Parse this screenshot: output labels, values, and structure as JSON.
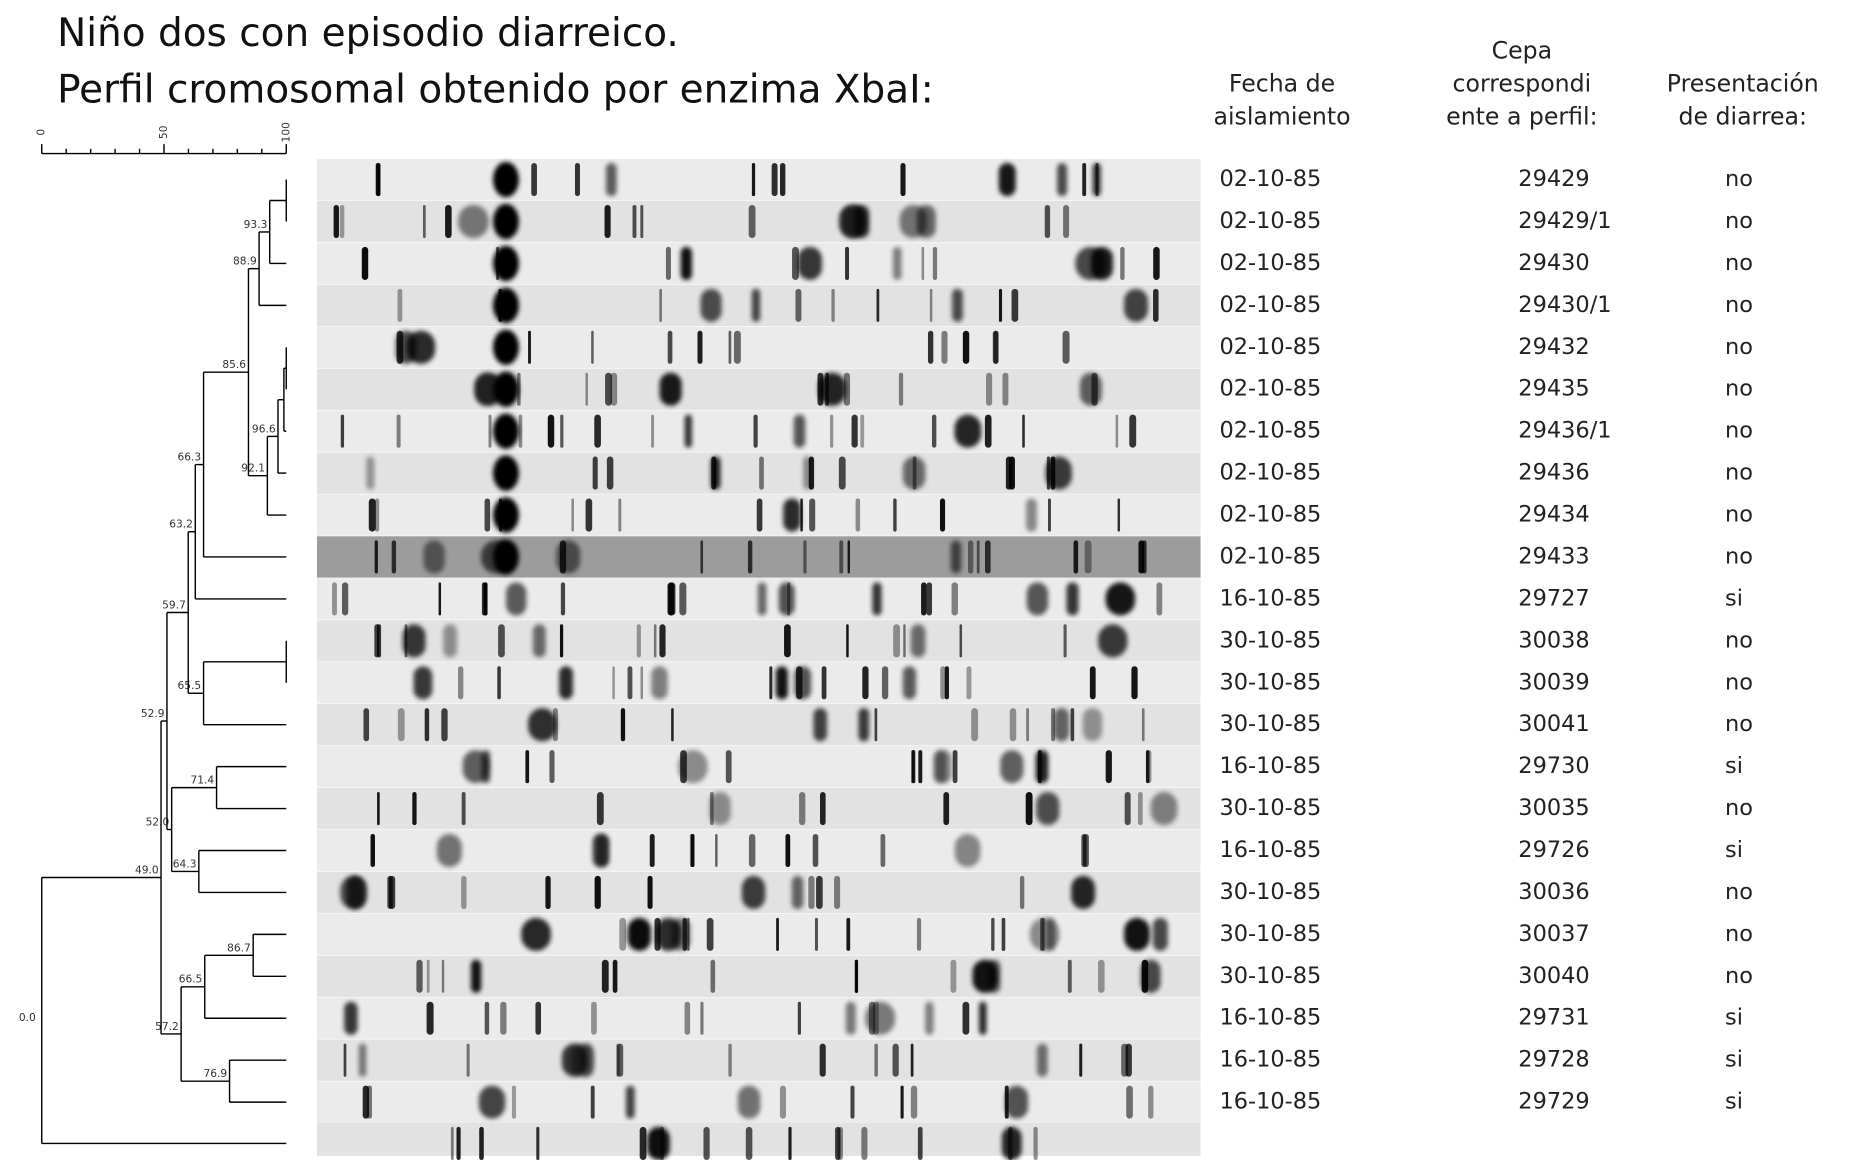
{
  "title_lines": [
    "Niño dos con episodio diarreico.",
    "Perfil cromosomal obtenido por enzima XbaI:"
  ],
  "scale_ticks": [
    "0",
    "50",
    "100"
  ],
  "node_labels": [
    "93.3",
    "88.9",
    "85.6",
    "96.6",
    "92.1",
    "66.3",
    "63.2",
    "59.7",
    "65.5",
    "52.9",
    "52.0",
    "71.4",
    "64.3",
    "49.0",
    "86.7",
    "66.5",
    "57.2",
    "76.9",
    "0.0"
  ],
  "table": {
    "headers": [
      [
        "Fecha de",
        "aislamiento"
      ],
      [
        "Cepa",
        "correspondi",
        "ente a perfil:"
      ],
      [
        "Presentación",
        "de diarrea:"
      ]
    ],
    "rows": [
      [
        "02-10-85",
        "29429",
        "no"
      ],
      [
        "02-10-85",
        "29429/1",
        "no"
      ],
      [
        "02-10-85",
        "29430",
        "no"
      ],
      [
        "02-10-85",
        "29430/1",
        "no"
      ],
      [
        "02-10-85",
        "29432",
        "no"
      ],
      [
        "02-10-85",
        "29435",
        "no"
      ],
      [
        "02-10-85",
        "29436/1",
        "no"
      ],
      [
        "02-10-85",
        "29436",
        "no"
      ],
      [
        "02-10-85",
        "29434",
        "no"
      ],
      [
        "02-10-85",
        "29433",
        "no"
      ],
      [
        "16-10-85",
        "29727",
        "si"
      ],
      [
        "30-10-85",
        "30038",
        "no"
      ],
      [
        "30-10-85",
        "30039",
        "no"
      ],
      [
        "30-10-85",
        "30041",
        "no"
      ],
      [
        "16-10-85",
        "29730",
        "si"
      ],
      [
        "30-10-85",
        "30035",
        "no"
      ],
      [
        "16-10-85",
        "29726",
        "si"
      ],
      [
        "30-10-85",
        "30036",
        "no"
      ],
      [
        "30-10-85",
        "30037",
        "no"
      ],
      [
        "30-10-85",
        "30040",
        "no"
      ],
      [
        "16-10-85",
        "29731",
        "si"
      ],
      [
        "16-10-85",
        "29728",
        "si"
      ],
      [
        "16-10-85",
        "29729",
        "si"
      ]
    ]
  }
}
